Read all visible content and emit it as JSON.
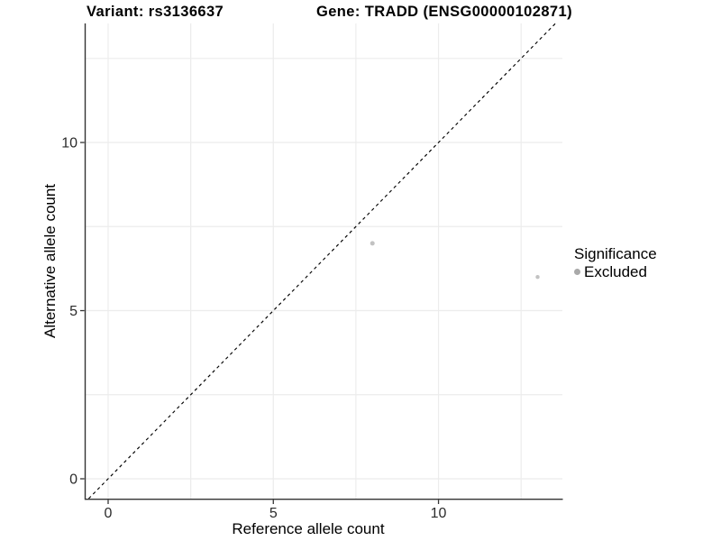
{
  "chart_data": {
    "type": "scatter",
    "title_left": "Variant: rs3136637",
    "title_right": "Gene: TRADD (ENSG00000102871)",
    "xlabel": "Reference allele count",
    "ylabel": "Alternative allele count",
    "xlim": [
      -0.682,
      13.75
    ],
    "ylim": [
      -0.59,
      13.54
    ],
    "x_ticks": {
      "values": [
        0,
        5,
        10
      ],
      "labels": [
        "0",
        "5",
        "10"
      ]
    },
    "y_ticks": {
      "values": [
        0,
        5,
        10
      ],
      "labels": [
        "0",
        "5",
        "10"
      ]
    },
    "x_minor": [
      2.5,
      7.5,
      12.5
    ],
    "y_minor": [
      2.5,
      7.5,
      12.5
    ],
    "grid": true,
    "identity_line": {
      "equation": "y = x",
      "style": "dashed",
      "color": "#000000"
    },
    "series": [
      {
        "name": "Excluded",
        "color": "#c2c2c2",
        "points": [
          {
            "x": 8,
            "y": 7,
            "r": 2.5
          },
          {
            "x": 13,
            "y": 6,
            "r": 2.2
          }
        ]
      }
    ],
    "legend": {
      "position": "right",
      "title": "Significance",
      "items": [
        {
          "label": "Excluded",
          "key_color": "#a9a9a9"
        }
      ]
    },
    "colors": {
      "background": "#ffffff",
      "grid": "#ececec",
      "axis_line": "#333333",
      "tick_label": "#2b2b2b",
      "point": "#c2c2c2",
      "dash_line": "#000000"
    }
  }
}
